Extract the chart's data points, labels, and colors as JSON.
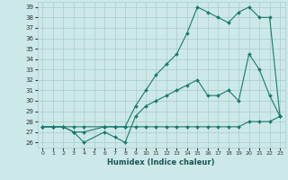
{
  "xlabel": "Humidex (Indice chaleur)",
  "background_color": "#cce8e8",
  "grid_color": "#aacccc",
  "line_color": "#1a7a6e",
  "xlim": [
    -0.5,
    23.5
  ],
  "ylim": [
    25.5,
    39.5
  ],
  "yticks": [
    26,
    27,
    28,
    29,
    30,
    31,
    32,
    33,
    34,
    35,
    36,
    37,
    38,
    39
  ],
  "xticks": [
    0,
    1,
    2,
    3,
    4,
    5,
    6,
    7,
    8,
    9,
    10,
    11,
    12,
    13,
    14,
    15,
    16,
    17,
    18,
    19,
    20,
    21,
    22,
    23
  ],
  "series": [
    {
      "x": [
        0,
        1,
        2,
        3,
        4,
        6,
        7,
        8,
        9,
        10,
        11,
        12,
        13,
        14,
        15,
        16,
        17,
        18,
        19,
        20,
        21,
        22,
        23
      ],
      "y": [
        27.5,
        27.5,
        27.5,
        27.5,
        27.5,
        27.5,
        27.5,
        27.5,
        27.5,
        27.5,
        27.5,
        27.5,
        27.5,
        27.5,
        27.5,
        27.5,
        27.5,
        27.5,
        27.5,
        28.0,
        28.0,
        28.0,
        28.5
      ]
    },
    {
      "x": [
        0,
        1,
        2,
        3,
        4,
        6,
        7,
        8,
        9,
        10,
        11,
        12,
        13,
        14,
        15,
        16,
        17,
        18,
        19,
        20,
        21,
        22,
        23
      ],
      "y": [
        27.5,
        27.5,
        27.5,
        27.0,
        26.0,
        27.0,
        26.5,
        26.0,
        28.5,
        29.5,
        30.0,
        30.5,
        31.0,
        31.5,
        32.0,
        30.5,
        30.5,
        31.0,
        30.0,
        34.5,
        33.0,
        30.5,
        28.5
      ]
    },
    {
      "x": [
        0,
        1,
        2,
        3,
        4,
        6,
        7,
        8,
        9,
        10,
        11,
        12,
        13,
        14,
        15,
        16,
        17,
        18,
        19,
        20,
        21,
        22,
        23
      ],
      "y": [
        27.5,
        27.5,
        27.5,
        27.0,
        27.0,
        27.5,
        27.5,
        27.5,
        29.5,
        31.0,
        32.5,
        33.5,
        34.5,
        36.5,
        39.0,
        38.5,
        38.0,
        37.5,
        38.5,
        39.0,
        38.0,
        38.0,
        28.5
      ]
    }
  ]
}
